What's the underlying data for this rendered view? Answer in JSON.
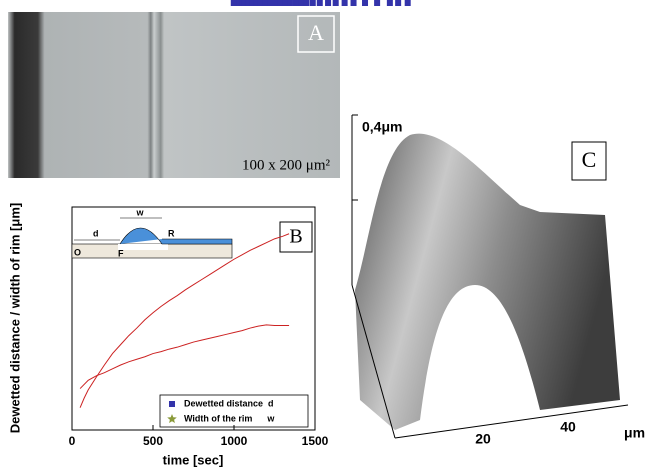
{
  "panel_a": {
    "label": "A",
    "scale": "100 x 200 μm²"
  },
  "panel_c": {
    "label": "C",
    "height": "0,4μm",
    "ticks": [
      "20",
      "40"
    ],
    "unit": "μm"
  },
  "chart_data": {
    "type": "scatter",
    "label": "B",
    "xlabel": "time  [sec]",
    "ylabel": "Dewetted distance / width of rim  [μm]",
    "inset_labels": [
      "w",
      "d",
      "R",
      "O",
      "F"
    ],
    "xlim": [
      0,
      1500
    ],
    "xticks": [
      0,
      500,
      1000,
      1500
    ],
    "ylim": [
      0,
      35
    ],
    "legend": "lower right",
    "series": [
      {
        "name": "Dewetted distance  d",
        "color": "#3333aa",
        "marker": "square",
        "fit_color": "#cc2222",
        "x": [
          50,
          75,
          100,
          150,
          200,
          250,
          300,
          350,
          400,
          450,
          500,
          550,
          600,
          650,
          700,
          750,
          800,
          850,
          900,
          950,
          1000,
          1050,
          1100,
          1150,
          1200,
          1250,
          1300,
          1340
        ],
        "values": [
          3.5,
          5,
          6.3,
          8.3,
          10.2,
          12,
          13.4,
          14.8,
          16,
          17.3,
          18.4,
          19.4,
          20.3,
          21.1,
          22,
          22.8,
          23.6,
          24.4,
          25.2,
          26,
          26.8,
          27.5,
          28.2,
          28.8,
          29.4,
          30,
          30.4,
          30.8
        ]
      },
      {
        "name": "Width of the rim      w",
        "color": "#8a9a3a",
        "marker": "star",
        "fit_color": "#cc2222",
        "x": [
          50,
          100,
          150,
          200,
          250,
          300,
          350,
          400,
          450,
          500,
          550,
          600,
          650,
          700,
          750,
          800,
          850,
          900,
          950,
          1000,
          1050,
          1100,
          1150,
          1200,
          1250,
          1340
        ],
        "values": [
          6.5,
          7.8,
          8.5,
          9,
          9.6,
          10.2,
          10.7,
          11.1,
          11.5,
          12,
          12.3,
          12.7,
          13,
          13.4,
          13.8,
          14.1,
          14.4,
          14.7,
          15,
          15.3,
          15.6,
          16,
          16.3,
          16.5,
          16.4,
          16.4
        ]
      }
    ]
  }
}
